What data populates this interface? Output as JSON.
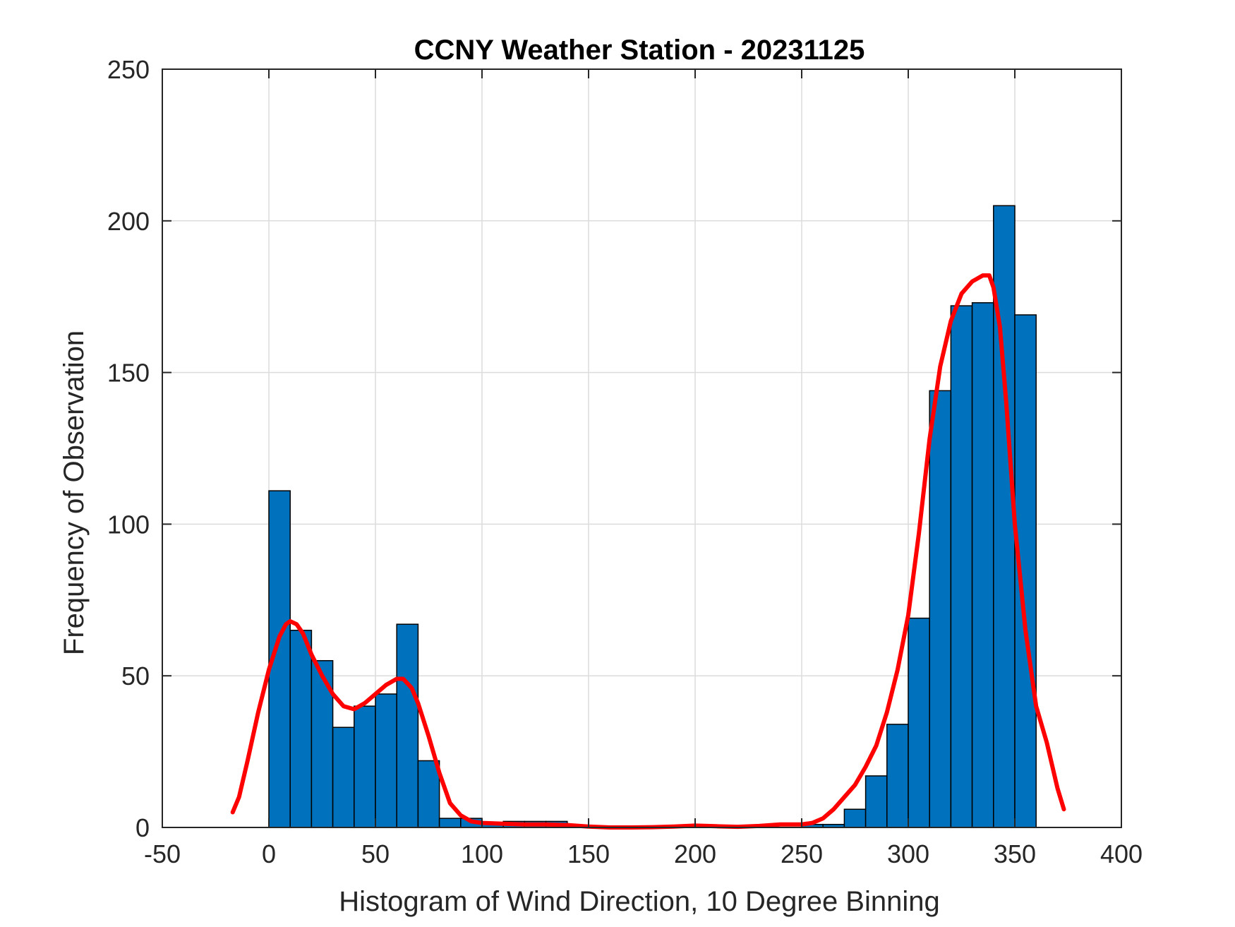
{
  "chart_data": {
    "type": "bar",
    "title": "CCNY Weather Station - 20231125",
    "xlabel": "Histogram of Wind Direction, 10 Degree Binning",
    "ylabel": "Frequency of Observation",
    "xlim": [
      -50,
      400
    ],
    "ylim": [
      0,
      250
    ],
    "x_ticks": [
      -50,
      0,
      50,
      100,
      150,
      200,
      250,
      300,
      350,
      400
    ],
    "y_ticks": [
      0,
      50,
      100,
      150,
      200,
      250
    ],
    "grid": true,
    "bin_width": 10,
    "bin_edges_start": [
      0,
      10,
      20,
      30,
      40,
      50,
      60,
      70,
      80,
      90,
      100,
      110,
      120,
      130,
      140,
      150,
      160,
      170,
      180,
      190,
      200,
      210,
      220,
      230,
      240,
      250,
      260,
      270,
      280,
      290,
      300,
      310,
      320,
      330,
      340,
      350
    ],
    "values": [
      111,
      65,
      55,
      33,
      40,
      44,
      67,
      22,
      3,
      3,
      1,
      2,
      2,
      2,
      0,
      0,
      0,
      0,
      0,
      0,
      0,
      0,
      0,
      0,
      0,
      1,
      1,
      6,
      17,
      34,
      69,
      144,
      172,
      173,
      205,
      169
    ],
    "fit_curve": {
      "x": [
        -17,
        -14,
        -10,
        -5,
        0,
        5,
        8,
        10,
        13,
        16,
        20,
        25,
        30,
        35,
        40,
        45,
        50,
        55,
        60,
        63,
        67,
        70,
        75,
        80,
        85,
        90,
        95,
        100,
        110,
        120,
        130,
        140,
        150,
        160,
        170,
        180,
        190,
        200,
        210,
        220,
        230,
        240,
        250,
        255,
        260,
        265,
        270,
        275,
        280,
        285,
        290,
        295,
        300,
        305,
        310,
        315,
        320,
        325,
        330,
        335,
        338,
        340,
        343,
        346,
        350,
        355,
        360,
        365,
        370,
        373
      ],
      "y": [
        5,
        10,
        22,
        38,
        52,
        63,
        67,
        68,
        67,
        64,
        57,
        50,
        44,
        40,
        39,
        41,
        44,
        47,
        49,
        49,
        46,
        41,
        30,
        18,
        8,
        4,
        2,
        1.5,
        1.2,
        1,
        1,
        0.8,
        0.3,
        0,
        0,
        0.1,
        0.3,
        0.6,
        0.4,
        0.2,
        0.5,
        1,
        1,
        1.5,
        3,
        6,
        10,
        14,
        20,
        27,
        38,
        52,
        70,
        97,
        128,
        152,
        167,
        176,
        180,
        182,
        182,
        178,
        165,
        140,
        100,
        65,
        40,
        28,
        13,
        6
      ],
      "color": "#ff0000"
    },
    "bar_color": "#0072bd",
    "bar_edge_color": "#000000"
  }
}
